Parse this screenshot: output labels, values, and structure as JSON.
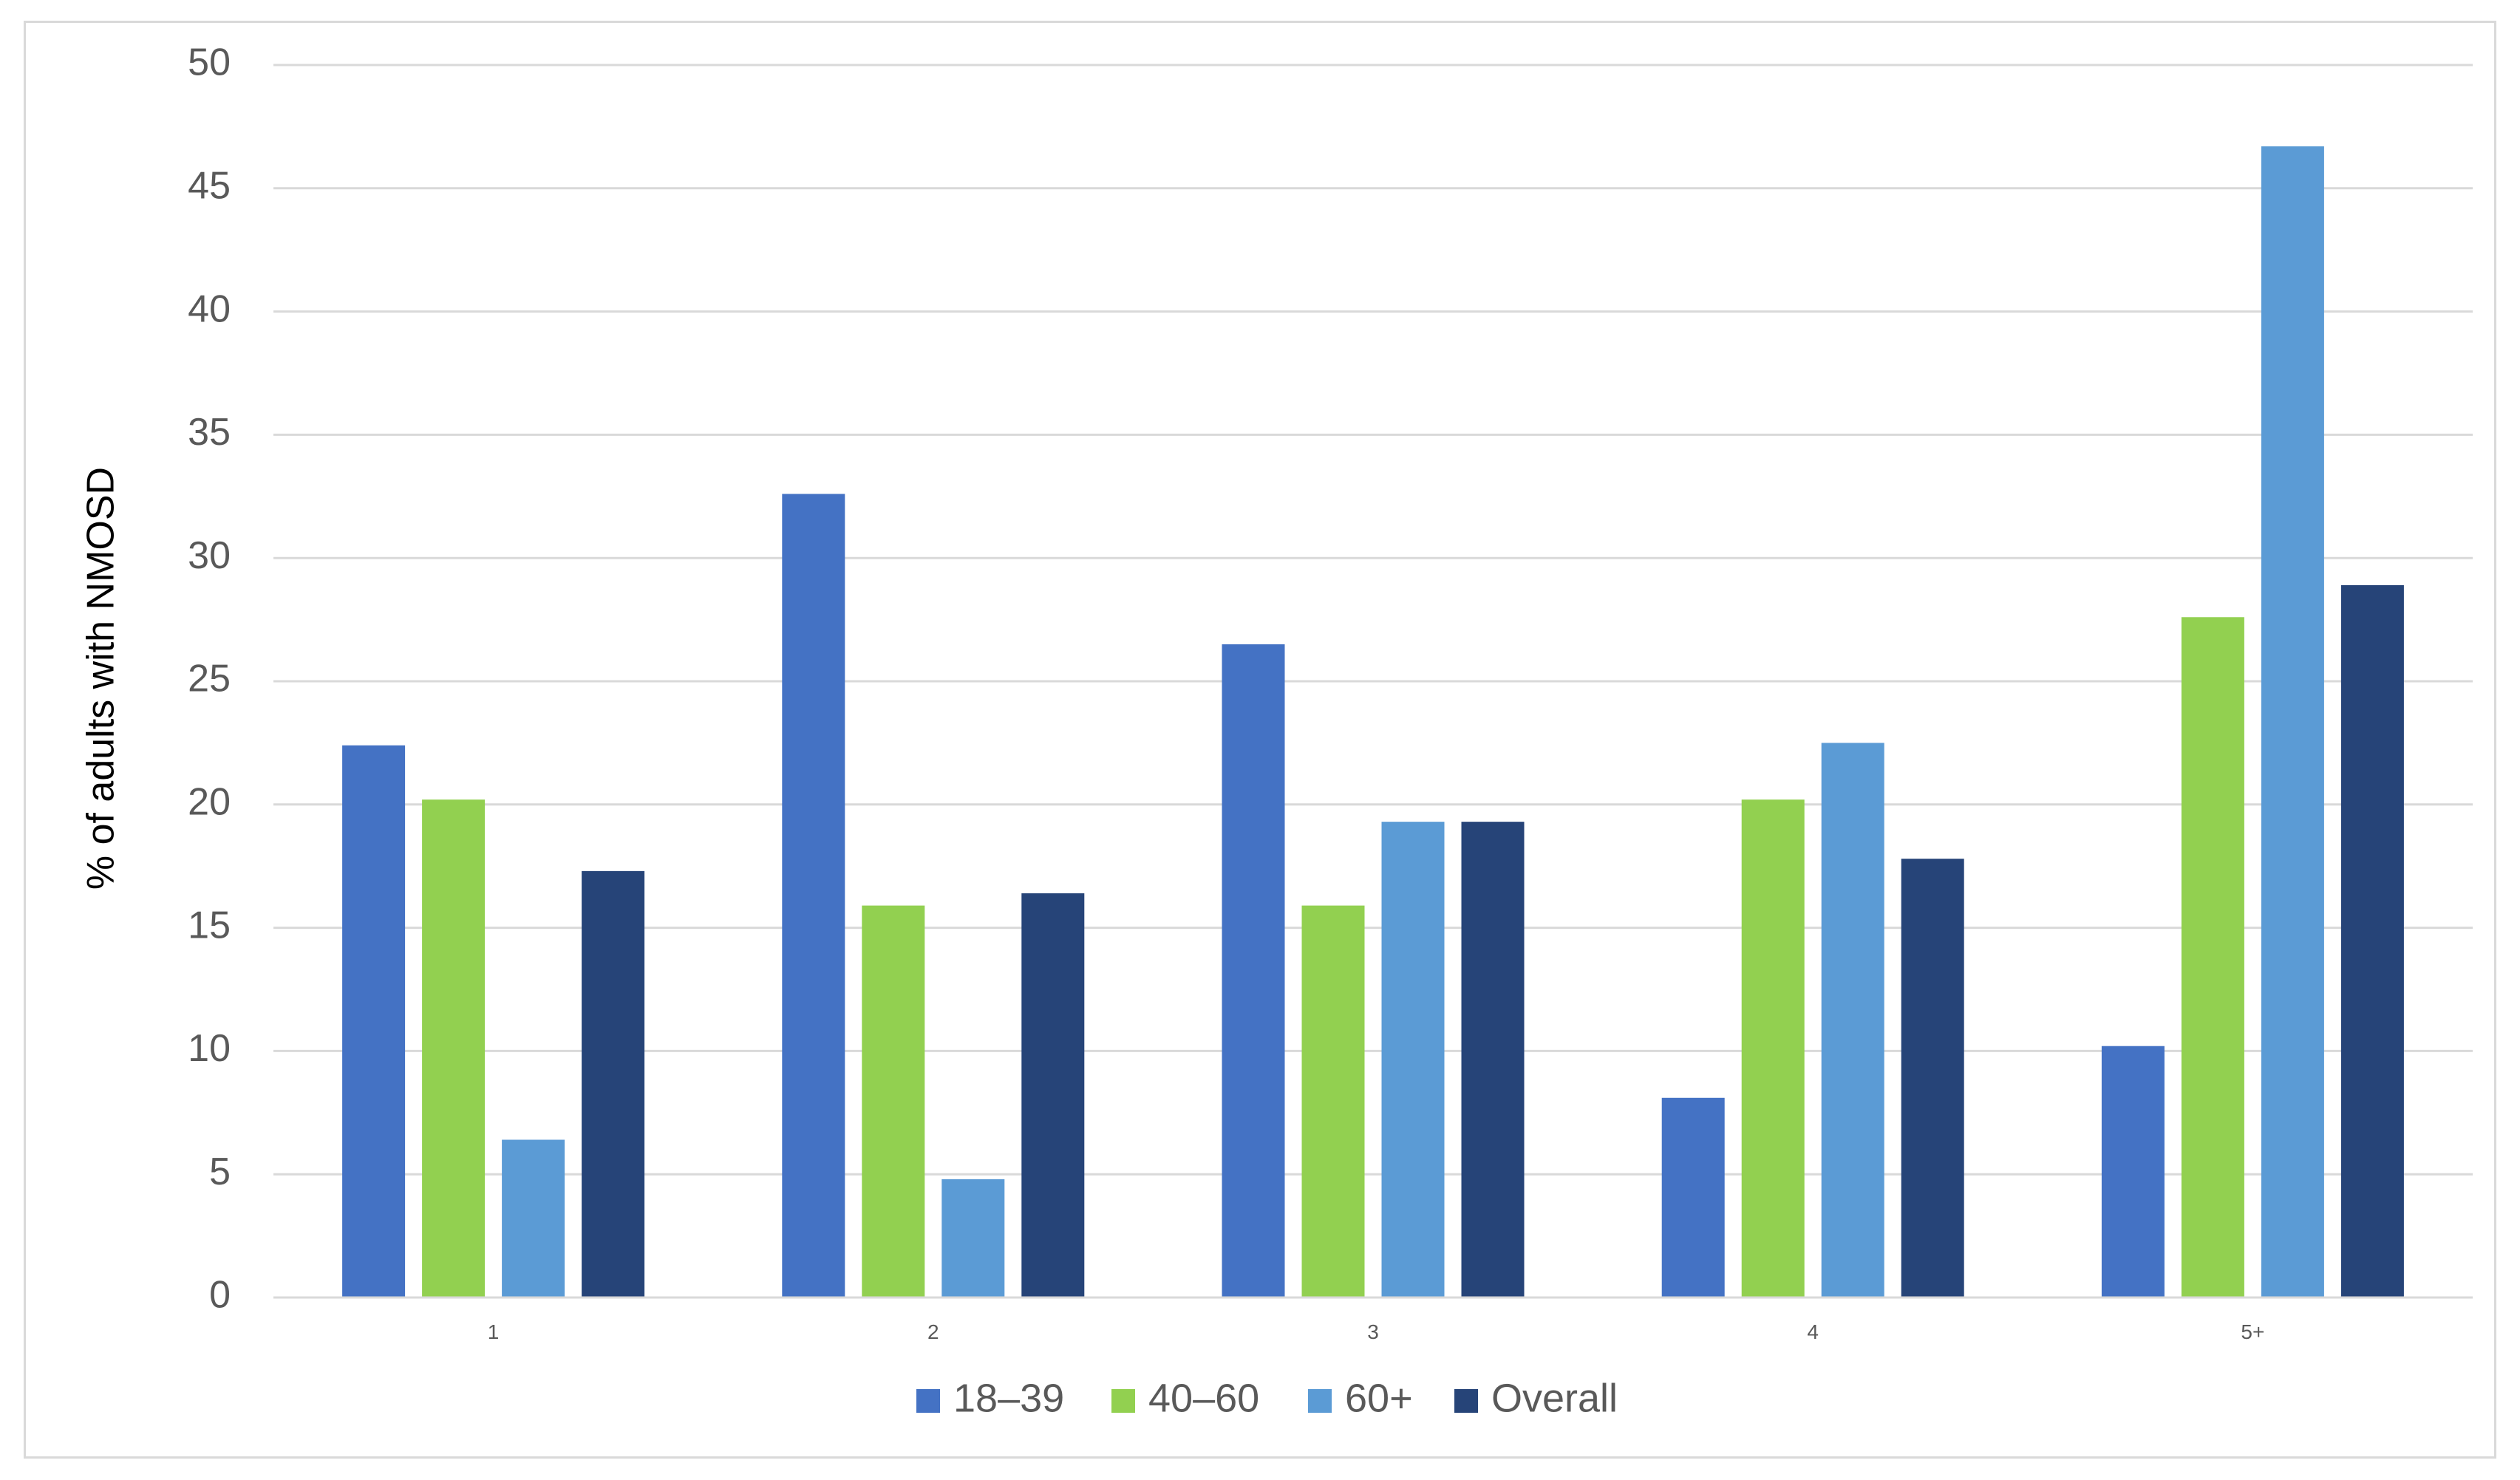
{
  "chart_data": {
    "type": "bar",
    "title": "",
    "xlabel": "",
    "ylabel": "% of adults with NMOSD",
    "categories": [
      "1",
      "2",
      "3",
      "4",
      "5+"
    ],
    "series": [
      {
        "name": "18–39",
        "color": "#4472C4",
        "values": [
          22.4,
          32.6,
          26.5,
          8.1,
          10.2
        ]
      },
      {
        "name": "40–60",
        "color": "#92D050",
        "values": [
          20.2,
          15.9,
          15.9,
          20.2,
          27.6
        ]
      },
      {
        "name": "60+",
        "color": "#5B9BD5",
        "values": [
          6.4,
          4.8,
          19.3,
          22.5,
          46.7
        ]
      },
      {
        "name": "Overall",
        "color": "#264478",
        "values": [
          17.3,
          16.4,
          19.3,
          17.8,
          28.9
        ]
      }
    ],
    "ylim": [
      0,
      50
    ],
    "yticks": [
      "0",
      "5",
      "10",
      "15",
      "20",
      "25",
      "30",
      "35",
      "40",
      "45",
      "50"
    ],
    "grid": true,
    "legend_position": "bottom"
  }
}
